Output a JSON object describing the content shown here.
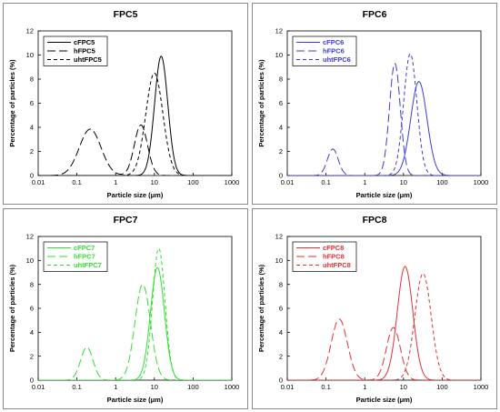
{
  "chart_data": [
    {
      "type": "line",
      "title": "FPC5",
      "color": "#000000",
      "xlabel": "Particle size (μm)",
      "ylabel": "Percentage of particles (%)",
      "xscale": "log",
      "xlim": [
        0.01,
        1000
      ],
      "ylim": [
        0,
        12
      ],
      "xticks": [
        "0.01",
        "0.1",
        "1",
        "10",
        "100",
        "1000"
      ],
      "yticks": [
        "0",
        "2",
        "4",
        "6",
        "8",
        "10",
        "12"
      ],
      "legend_position": "top-left",
      "series": [
        {
          "name": "cFPC5",
          "style": "solid",
          "peaks": [
            {
              "center": 15,
              "height": 9.9,
              "width": 0.17
            }
          ]
        },
        {
          "name": "hFPC5",
          "style": "long-dash",
          "peaks": [
            {
              "center": 0.22,
              "height": 3.85,
              "width": 0.28
            },
            {
              "center": 4.5,
              "height": 4.2,
              "width": 0.17
            }
          ]
        },
        {
          "name": "uhtFPC5",
          "style": "short-dash",
          "peaks": [
            {
              "center": 10,
              "height": 8.5,
              "width": 0.22
            }
          ]
        }
      ]
    },
    {
      "type": "line",
      "title": "FPC6",
      "color": "#3b3bd6",
      "xlabel": "Particle size (μm)",
      "ylabel": "Percentage of particles (%)",
      "xscale": "log",
      "xlim": [
        0.01,
        1000
      ],
      "ylim": [
        0,
        12
      ],
      "xticks": [
        "0.01",
        "0.1",
        "1",
        "10",
        "100",
        "1000"
      ],
      "yticks": [
        "0",
        "2",
        "4",
        "6",
        "8",
        "10",
        "12"
      ],
      "legend_position": "top-left",
      "series": [
        {
          "name": "cFPC6",
          "style": "solid",
          "peaks": [
            {
              "center": 25,
              "height": 7.8,
              "width": 0.21
            }
          ]
        },
        {
          "name": "hFPC6",
          "style": "long-dash",
          "peaks": [
            {
              "center": 0.15,
              "height": 2.2,
              "width": 0.14
            },
            {
              "center": 6,
              "height": 9.3,
              "width": 0.14
            }
          ]
        },
        {
          "name": "uhtFPC6",
          "style": "short-dash",
          "peaks": [
            {
              "center": 15,
              "height": 10.1,
              "width": 0.17
            }
          ]
        }
      ]
    },
    {
      "type": "line",
      "title": "FPC7",
      "color": "#33dd33",
      "xlabel": "Particle size (μm)",
      "ylabel": "Percentage of particles (%)",
      "xscale": "log",
      "xlim": [
        0.01,
        1000
      ],
      "ylim": [
        0,
        12
      ],
      "xticks": [
        "0.01",
        "0.1",
        "1",
        "10",
        "100",
        "1000"
      ],
      "yticks": [
        "0",
        "2",
        "4",
        "6",
        "8",
        "10",
        "12"
      ],
      "legend_position": "top-left",
      "series": [
        {
          "name": "cFPC7",
          "style": "solid",
          "peaks": [
            {
              "center": 12,
              "height": 9.4,
              "width": 0.18
            }
          ]
        },
        {
          "name": "hFPC7",
          "style": "long-dash",
          "peaks": [
            {
              "center": 0.18,
              "height": 2.75,
              "width": 0.16
            },
            {
              "center": 5,
              "height": 8.0,
              "width": 0.2
            }
          ]
        },
        {
          "name": "uhtFPC7",
          "style": "short-dash",
          "peaks": [
            {
              "center": 13,
              "height": 11.0,
              "width": 0.16
            }
          ]
        }
      ]
    },
    {
      "type": "line",
      "title": "FPC8",
      "color": "#e03232",
      "xlabel": "Particle size (μm)",
      "ylabel": "Percentage of particles (%)",
      "xscale": "log",
      "xlim": [
        0.01,
        1000
      ],
      "ylim": [
        0,
        12
      ],
      "xticks": [
        "0.01",
        "0.1",
        "1",
        "10",
        "100",
        "1000"
      ],
      "yticks": [
        "0",
        "2",
        "4",
        "6",
        "8",
        "10",
        "12"
      ],
      "legend_position": "top-left",
      "series": [
        {
          "name": "cFPC8",
          "style": "solid",
          "peaks": [
            {
              "center": 11,
              "height": 9.5,
              "width": 0.2
            }
          ]
        },
        {
          "name": "hFPC8",
          "style": "long-dash",
          "peaks": [
            {
              "center": 0.22,
              "height": 5.1,
              "width": 0.21
            },
            {
              "center": 5.5,
              "height": 4.4,
              "width": 0.18
            }
          ]
        },
        {
          "name": "uhtFPC8",
          "style": "short-dash",
          "peaks": [
            {
              "center": 32,
              "height": 8.9,
              "width": 0.21
            }
          ]
        }
      ]
    }
  ]
}
